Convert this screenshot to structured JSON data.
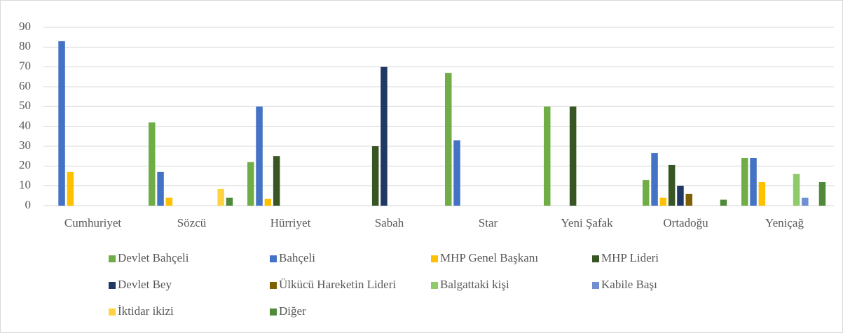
{
  "chart_data": {
    "type": "bar",
    "categories": [
      "Cumhuriyet",
      "Sözcü",
      "Hürriyet",
      "Sabah",
      "Star",
      "Yeni Şafak",
      "Ortadoğu",
      "Yeniçağ"
    ],
    "series": [
      {
        "name": "Devlet Bahçeli",
        "color": "#70ad47",
        "values": [
          0,
          42,
          22,
          0,
          67,
          50,
          13,
          24
        ]
      },
      {
        "name": "Bahçeli",
        "color": "#4472c4",
        "values": [
          83,
          17,
          50,
          0,
          33,
          0,
          26.5,
          24
        ]
      },
      {
        "name": "MHP Genel Başkanı",
        "color": "#ffc000",
        "values": [
          17,
          4,
          3.5,
          0,
          0,
          0,
          4,
          12
        ]
      },
      {
        "name": "MHP Lideri",
        "color": "#375623",
        "values": [
          0,
          0,
          25,
          30,
          0,
          50,
          20.5,
          0
        ]
      },
      {
        "name": "Devlet Bey",
        "color": "#203864",
        "values": [
          0,
          0,
          0,
          70,
          0,
          0,
          10,
          0
        ]
      },
      {
        "name": "Ülkücü Hareketin Lideri",
        "color": "#7f6000",
        "values": [
          0,
          0,
          0,
          0,
          0,
          0,
          6,
          0
        ]
      },
      {
        "name": "Balgattaki kişi",
        "color": "#8fcb6a",
        "values": [
          0,
          0,
          0,
          0,
          0,
          0,
          0,
          16
        ]
      },
      {
        "name": "Kabile Başı",
        "color": "#6f8fd0",
        "values": [
          0,
          0,
          0,
          0,
          0,
          0,
          0,
          4
        ]
      },
      {
        "name": "İktidar ikizi",
        "color": "#ffd23f",
        "values": [
          0,
          8.5,
          0,
          0,
          0,
          0,
          0,
          0
        ]
      },
      {
        "name": "Diğer",
        "color": "#4f8a3a",
        "values": [
          0,
          4,
          0,
          0,
          0,
          0,
          3,
          12
        ]
      }
    ],
    "ylim": [
      0,
      90
    ],
    "yticks": [
      0,
      10,
      20,
      30,
      40,
      50,
      60,
      70,
      80,
      90
    ],
    "grid": true,
    "legend": "bottom"
  }
}
